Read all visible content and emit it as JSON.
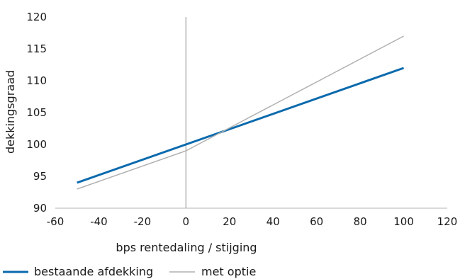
{
  "chart_data": {
    "type": "line",
    "title": "",
    "xlabel": "bps rentedaling / stijging",
    "ylabel": "dekkingsgraad",
    "xlim": [
      -60,
      120
    ],
    "ylim": [
      90,
      120
    ],
    "x_ticks": [
      "-60",
      "-40",
      "-20",
      "0",
      "20",
      "40",
      "60",
      "80",
      "100",
      "120"
    ],
    "y_ticks": [
      "90",
      "95",
      "100",
      "105",
      "110",
      "115",
      "120"
    ],
    "reference_line_x": 0,
    "grid": false,
    "legend_position": "bottom-left",
    "series": [
      {
        "name": "bestaande afdekking",
        "color": "#0a6aad",
        "points": [
          [
            -50,
            94
          ],
          [
            0,
            100
          ],
          [
            50,
            106
          ],
          [
            100,
            112
          ]
        ]
      },
      {
        "name": "met optie",
        "color": "#b0b0b0",
        "points": [
          [
            -50,
            93
          ],
          [
            0,
            99
          ],
          [
            50,
            108
          ],
          [
            100,
            117
          ]
        ]
      }
    ]
  }
}
